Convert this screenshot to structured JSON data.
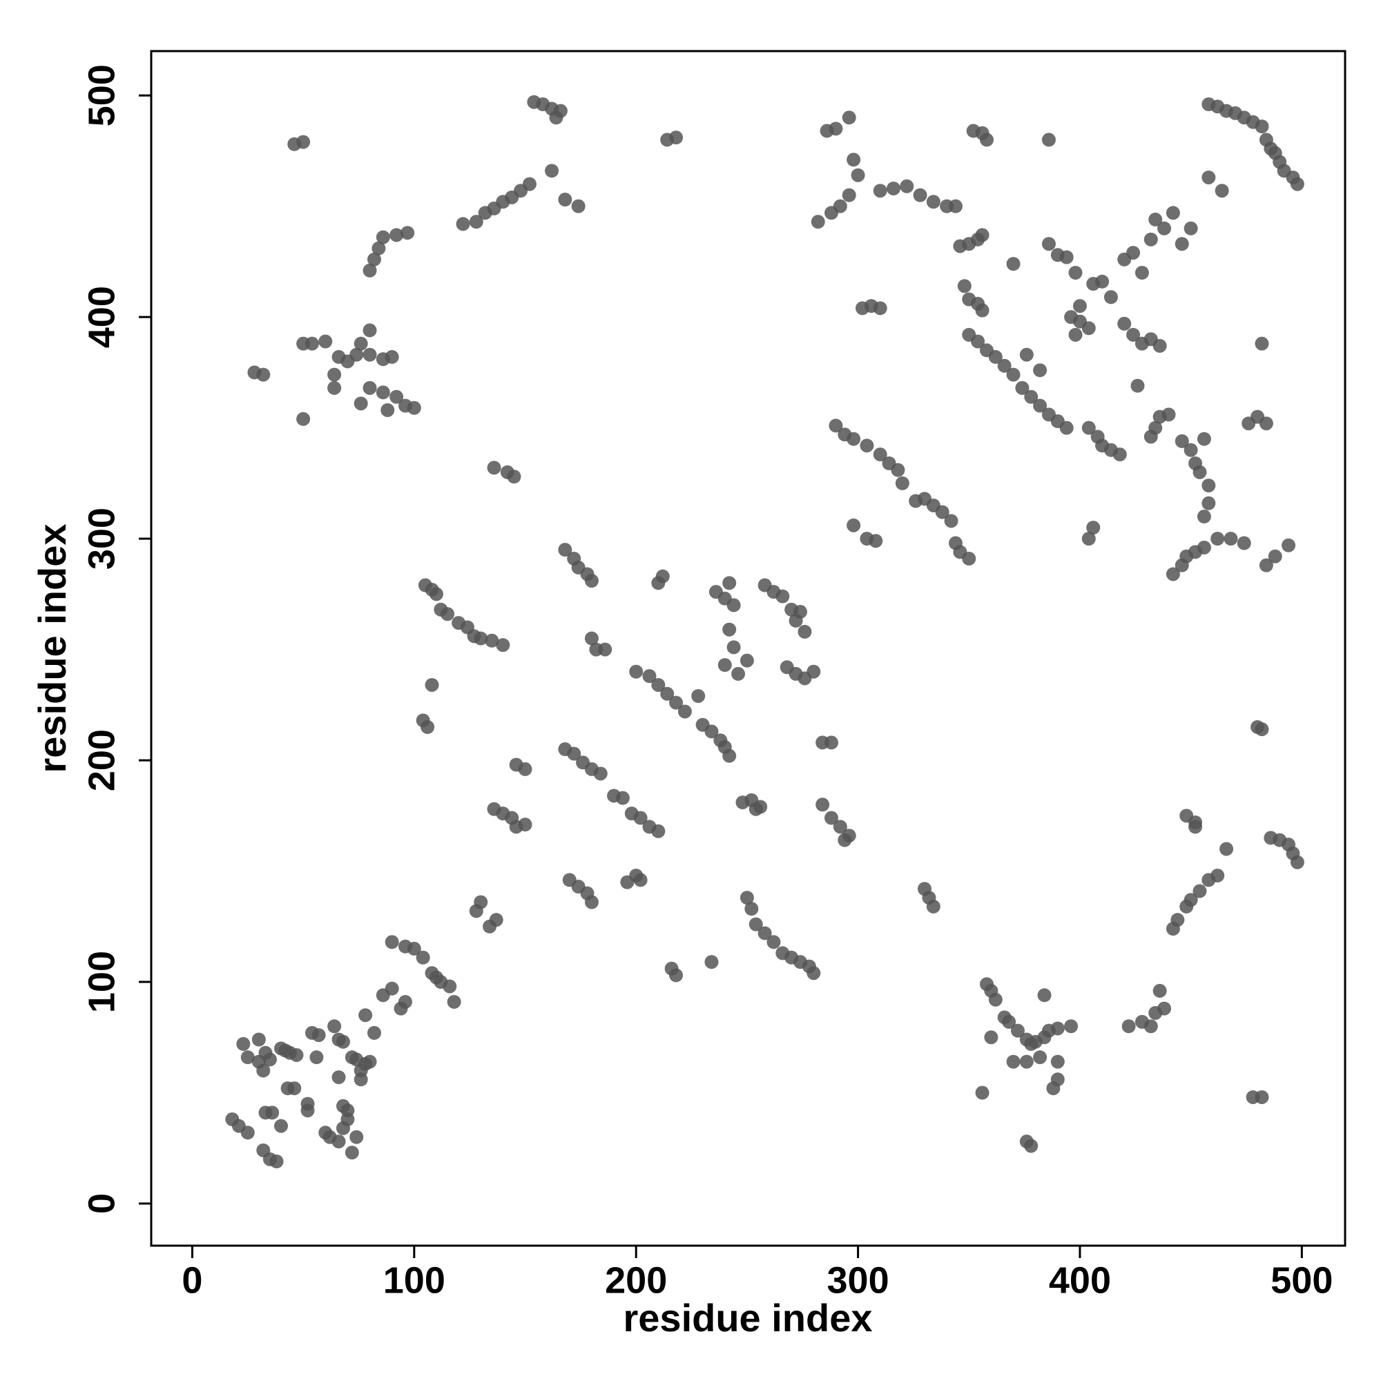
{
  "chart_data": {
    "type": "scatter",
    "x_label": "residue index",
    "y_label": "residue index",
    "color": "#555555",
    "xlim": [
      -18.5,
      519.5
    ],
    "ylim": [
      -19,
      520
    ],
    "xticks": [
      0,
      100,
      200,
      300,
      400,
      500
    ],
    "yticks": [
      0,
      100,
      200,
      300,
      400,
      500
    ],
    "x": [
      18,
      21,
      25,
      23,
      25,
      30,
      30,
      32,
      33,
      35,
      32,
      35,
      38,
      33,
      36,
      40,
      42,
      44,
      47,
      40,
      43,
      46,
      52,
      52,
      54,
      57,
      56,
      60,
      62,
      64,
      66,
      68,
      66,
      68,
      70,
      70,
      68,
      66,
      72,
      74,
      76,
      78,
      80,
      74,
      72,
      76,
      78,
      82,
      86,
      90,
      94,
      96,
      90,
      96,
      100,
      104,
      108,
      110,
      112,
      116,
      118,
      105,
      108,
      110,
      112,
      115,
      120,
      124,
      127,
      130,
      135,
      140,
      104,
      106,
      108,
      128,
      130,
      134,
      137,
      136,
      140,
      144,
      146,
      150,
      146,
      150,
      136,
      142,
      145,
      50,
      54,
      60,
      66,
      70,
      74,
      76,
      80,
      80,
      86,
      90,
      64,
      64,
      76,
      80,
      86,
      88,
      92,
      96,
      100,
      50,
      28,
      32,
      46,
      50,
      82,
      84,
      86,
      92,
      97,
      80,
      122,
      128,
      132,
      136,
      140,
      144,
      148,
      152,
      162,
      154,
      158,
      162,
      164,
      166,
      168,
      174,
      218,
      214,
      168,
      172,
      174,
      178,
      180,
      180,
      182,
      186,
      168,
      172,
      176,
      180,
      184,
      190,
      194,
      198,
      202,
      206,
      210,
      196,
      200,
      202,
      170,
      174,
      178,
      180,
      200,
      206,
      210,
      214,
      218,
      222,
      228,
      230,
      234,
      238,
      240,
      242,
      212,
      210,
      216,
      218,
      234,
      236,
      240,
      242,
      244,
      242,
      244,
      240,
      246,
      250,
      248,
      252,
      256,
      254,
      250,
      252,
      254,
      258,
      262,
      266,
      270,
      274,
      278,
      280,
      258,
      262,
      266,
      270,
      272,
      276,
      274,
      268,
      272,
      276,
      280,
      284,
      288,
      284,
      288,
      292,
      296,
      294,
      282,
      288,
      292,
      296,
      286,
      290,
      296,
      298,
      300,
      302,
      306,
      310,
      310,
      316,
      322,
      328,
      334,
      340,
      344,
      290,
      294,
      298,
      304,
      310,
      314,
      318,
      320,
      326,
      330,
      334,
      338,
      342,
      344,
      346,
      350,
      298,
      304,
      308,
      330,
      332,
      334,
      346,
      350,
      354,
      356,
      348,
      350,
      354,
      356,
      352,
      356,
      358,
      350,
      354,
      358,
      362,
      366,
      370,
      374,
      378,
      382,
      386,
      390,
      394,
      370,
      376,
      382,
      386,
      358,
      360,
      362,
      366,
      368,
      372,
      376,
      378,
      380,
      384,
      386,
      390,
      396,
      356,
      360,
      370,
      376,
      382,
      384,
      388,
      390,
      390,
      376,
      378,
      386,
      390,
      394,
      398,
      396,
      400,
      398,
      404,
      400,
      406,
      410,
      414,
      420,
      424,
      428,
      432,
      434,
      438,
      442,
      446,
      450,
      420,
      424,
      428,
      432,
      436,
      426,
      404,
      408,
      410,
      414,
      418,
      432,
      434,
      436,
      440,
      406,
      404,
      446,
      450,
      452,
      454,
      456,
      458,
      458,
      456,
      462,
      468,
      474,
      446,
      448,
      452,
      456,
      442,
      484,
      488,
      494,
      476,
      480,
      484,
      482,
      480,
      482,
      458,
      462,
      466,
      470,
      474,
      478,
      482,
      484,
      486,
      488,
      490,
      492,
      496,
      498,
      458,
      464,
      448,
      452,
      466,
      486,
      490,
      494,
      496,
      498,
      442,
      444,
      448,
      450,
      454,
      458,
      462,
      434,
      438,
      436,
      422,
      428,
      432,
      478,
      482,
      452
    ],
    "values": [
      38,
      35,
      32,
      72,
      66,
      74,
      64,
      60,
      68,
      65,
      24,
      20,
      19,
      41,
      41,
      70,
      69,
      68,
      67,
      35,
      52,
      52,
      45,
      42,
      77,
      76,
      66,
      32,
      30,
      80,
      74,
      73,
      57,
      44,
      42,
      38,
      34,
      28,
      66,
      65,
      60,
      63,
      64,
      30,
      23,
      56,
      85,
      77,
      94,
      97,
      88,
      91,
      118,
      116,
      115,
      111,
      104,
      102,
      100,
      98,
      91,
      279,
      277,
      275,
      268,
      266,
      262,
      260,
      256,
      255,
      254,
      252,
      218,
      215,
      234,
      132,
      136,
      125,
      128,
      178,
      176,
      174,
      170,
      171,
      198,
      196,
      332,
      330,
      328,
      388,
      388,
      389,
      382,
      380,
      383,
      388,
      394,
      383,
      381,
      382,
      374,
      368,
      361,
      368,
      366,
      358,
      364,
      360,
      359,
      354,
      375,
      374,
      478,
      479,
      426,
      431,
      436,
      437,
      438,
      421,
      442,
      443,
      447,
      449,
      452,
      454,
      457,
      460,
      466,
      497,
      496,
      494,
      490,
      493,
      453,
      450,
      481,
      480,
      295,
      291,
      287,
      284,
      281,
      255,
      250,
      250,
      205,
      203,
      199,
      196,
      194,
      184,
      183,
      176,
      174,
      170,
      168,
      145,
      148,
      146,
      146,
      143,
      140,
      136,
      240,
      238,
      234,
      230,
      226,
      222,
      229,
      216,
      213,
      209,
      206,
      202,
      283,
      280,
      106,
      103,
      109,
      276,
      273,
      280,
      270,
      259,
      251,
      243,
      239,
      245,
      181,
      182,
      179,
      178,
      138,
      133,
      126,
      122,
      118,
      113,
      111,
      109,
      107,
      104,
      279,
      276,
      274,
      268,
      263,
      258,
      267,
      242,
      239,
      237,
      240,
      208,
      208,
      180,
      174,
      170,
      166,
      164,
      443,
      447,
      450,
      455,
      484,
      485,
      490,
      471,
      464,
      404,
      405,
      404,
      457,
      458,
      459,
      455,
      452,
      450,
      450,
      351,
      347,
      345,
      342,
      338,
      334,
      331,
      325,
      317,
      318,
      315,
      312,
      308,
      298,
      294,
      291,
      306,
      300,
      299,
      142,
      138,
      134,
      432,
      433,
      435,
      437,
      414,
      408,
      406,
      403,
      484,
      483,
      480,
      392,
      389,
      385,
      382,
      378,
      374,
      368,
      364,
      360,
      356,
      353,
      350,
      424,
      383,
      376,
      480,
      99,
      96,
      92,
      84,
      82,
      78,
      74,
      72,
      73,
      75,
      78,
      79,
      80,
      50,
      75,
      64,
      64,
      66,
      94,
      52,
      56,
      64,
      28,
      26,
      433,
      428,
      427,
      420,
      400,
      398,
      392,
      395,
      405,
      415,
      416,
      409,
      426,
      429,
      420,
      435,
      444,
      440,
      447,
      433,
      440,
      397,
      392,
      388,
      390,
      387,
      369,
      350,
      346,
      342,
      340,
      338,
      346,
      350,
      355,
      356,
      305,
      300,
      344,
      340,
      334,
      330,
      345,
      324,
      316,
      310,
      300,
      300,
      298,
      288,
      292,
      294,
      296,
      284,
      288,
      292,
      297,
      352,
      355,
      352,
      388,
      215,
      214,
      496,
      495,
      493,
      492,
      490,
      488,
      486,
      480,
      476,
      474,
      470,
      466,
      463,
      460,
      463,
      457,
      175,
      172,
      160,
      165,
      164,
      162,
      158,
      154,
      124,
      128,
      134,
      137,
      141,
      146,
      148,
      86,
      88,
      96,
      80,
      82,
      80,
      48,
      48,
      170
    ]
  }
}
